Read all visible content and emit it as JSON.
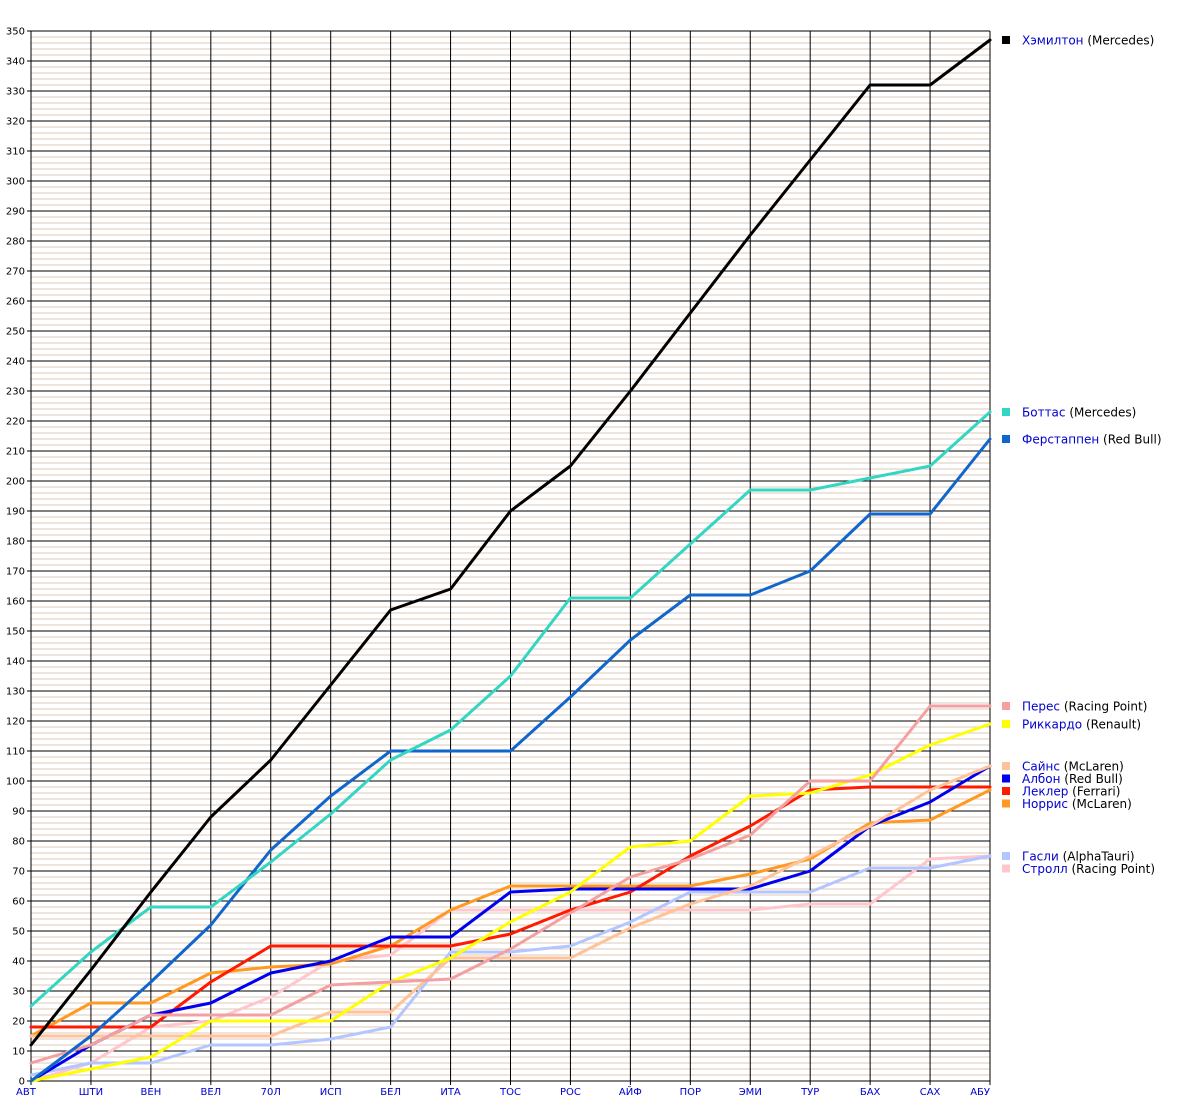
{
  "chart_data": {
    "type": "line",
    "title": "",
    "xlabel": "",
    "ylabel": "",
    "categories": [
      "АВТ",
      "ШТИ",
      "ВЕН",
      "ВЕЛ",
      "70Л",
      "ИСП",
      "БЕЛ",
      "ИТА",
      "ТОС",
      "РОС",
      "АЙФ",
      "ПОР",
      "ЭМИ",
      "ТУР",
      "БАХ",
      "САХ",
      "АБУ"
    ],
    "ylim": [
      0,
      350
    ],
    "y_major_step": 10,
    "y_minor_step": 2,
    "grid": true,
    "legend_position": "right",
    "series": [
      {
        "name": "Хэмилтон",
        "team": "(Mercedes)",
        "color": "#000000",
        "values": [
          12,
          37,
          63,
          88,
          107,
          132,
          157,
          164,
          190,
          205,
          230,
          256,
          282,
          307,
          332,
          332,
          347
        ]
      },
      {
        "name": "Боттас",
        "team": "(Mercedes)",
        "color": "#33d6c2",
        "values": [
          25,
          43,
          58,
          58,
          73,
          89,
          107,
          117,
          135,
          161,
          161,
          179,
          197,
          197,
          201,
          205,
          223
        ]
      },
      {
        "name": "Ферстаппен",
        "team": "(Red Bull)",
        "color": "#1166cc",
        "values": [
          0,
          15,
          33,
          52,
          77,
          95,
          110,
          110,
          110,
          128,
          147,
          162,
          162,
          170,
          189,
          189,
          214
        ]
      },
      {
        "name": "Перес",
        "team": "(Racing Point)",
        "color": "#f4a0a0",
        "values": [
          6,
          12,
          22,
          22,
          22,
          32,
          33,
          34,
          44,
          56,
          68,
          74,
          82,
          100,
          100,
          125,
          125
        ]
      },
      {
        "name": "Риккардо",
        "team": "(Renault)",
        "color": "#ffff00",
        "values": [
          0,
          4,
          8,
          20,
          20,
          20,
          33,
          41,
          53,
          63,
          78,
          80,
          95,
          96,
          102,
          112,
          119
        ]
      },
      {
        "name": "Сайнс",
        "team": "(McLaren)",
        "color": "#ffc299",
        "values": [
          15,
          15,
          15,
          15,
          15,
          23,
          23,
          41,
          41,
          41,
          51,
          59,
          65,
          75,
          85,
          97,
          105
        ]
      },
      {
        "name": "Албон",
        "team": "(Red Bull)",
        "color": "#0000ee",
        "values": [
          0,
          12,
          22,
          26,
          36,
          40,
          48,
          48,
          63,
          64,
          64,
          64,
          64,
          70,
          85,
          93,
          105
        ]
      },
      {
        "name": "Леклер",
        "team": "(Ferrari)",
        "color": "#ff1a00",
        "values": [
          18,
          18,
          18,
          33,
          45,
          45,
          45,
          45,
          49,
          57,
          63,
          75,
          85,
          97,
          98,
          98,
          98
        ]
      },
      {
        "name": "Норрис",
        "team": "(McLaren)",
        "color": "#ff9922",
        "values": [
          15,
          26,
          26,
          36,
          38,
          39,
          45,
          57,
          65,
          65,
          65,
          65,
          69,
          74,
          86,
          87,
          97
        ]
      },
      {
        "name": "Гасли",
        "team": "(AlphaTauri)",
        "color": "#b3c6ff",
        "values": [
          2,
          6,
          6,
          12,
          12,
          14,
          18,
          43,
          43,
          45,
          53,
          63,
          63,
          63,
          71,
          71,
          75
        ]
      },
      {
        "name": "Стролл",
        "team": "(Racing Point)",
        "color": "#ffc6cc",
        "values": [
          0,
          6,
          18,
          20,
          28,
          40,
          42,
          57,
          57,
          57,
          57,
          57,
          57,
          59,
          59,
          74,
          75
        ]
      }
    ]
  }
}
